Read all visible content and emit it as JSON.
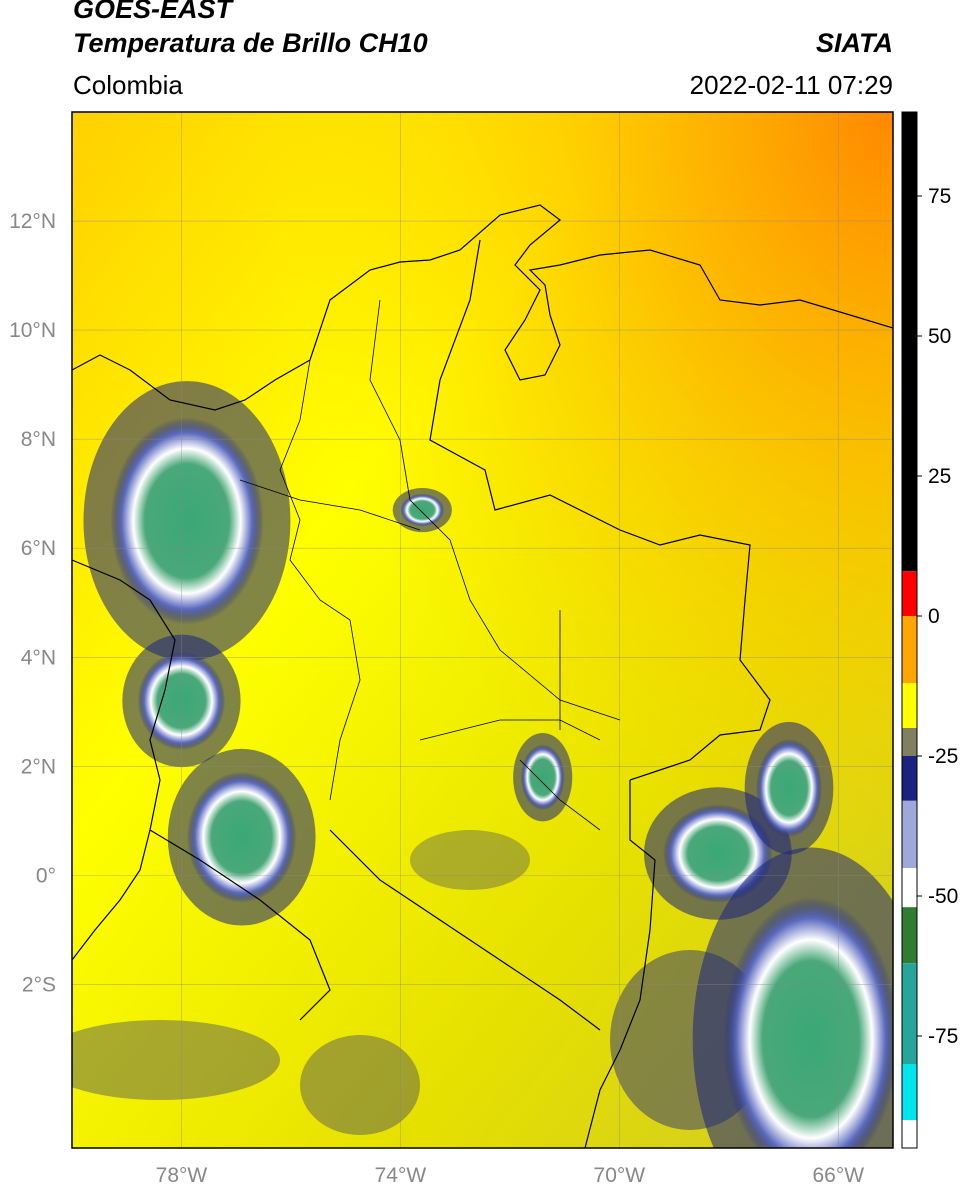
{
  "header": {
    "satellite": "GOES-EAST",
    "product": "Temperatura de Brillo CH10",
    "organization": "SIATA",
    "region": "Colombia",
    "datetime": "2022-02-11 07:29"
  },
  "map": {
    "lon_range": [
      -80,
      -65
    ],
    "lat_range": [
      -5,
      14
    ],
    "lat_ticks": [
      {
        "value": 12,
        "label": "12°N"
      },
      {
        "value": 10,
        "label": "10°N"
      },
      {
        "value": 8,
        "label": "8°N"
      },
      {
        "value": 6,
        "label": "6°N"
      },
      {
        "value": 4,
        "label": "4°N"
      },
      {
        "value": 2,
        "label": "2°N"
      },
      {
        "value": 0,
        "label": "0°"
      },
      {
        "value": -2,
        "label": "2°S"
      }
    ],
    "lon_ticks": [
      {
        "value": -78,
        "label": "78°W"
      },
      {
        "value": -74,
        "label": "74°W"
      },
      {
        "value": -70,
        "label": "70°W"
      },
      {
        "value": -66,
        "label": "66°W"
      }
    ],
    "gridlines": true,
    "colors": {
      "background_warm": "#ffff00",
      "background_orange": "#ffa500",
      "mid_olive": "#c8c832",
      "cold_blue": "#1a237e",
      "cold_white": "#ffffff",
      "cold_green": "#3aa876"
    },
    "cloud_systems": [
      {
        "lon": -77.9,
        "lat": 6.5,
        "rx": 1.4,
        "ry": 1.9
      },
      {
        "lon": -78.0,
        "lat": 3.2,
        "rx": 0.8,
        "ry": 0.9
      },
      {
        "lon": -76.9,
        "lat": 0.7,
        "rx": 1.0,
        "ry": 1.2
      },
      {
        "lon": -71.4,
        "lat": 1.8,
        "rx": 0.4,
        "ry": 0.6
      },
      {
        "lon": -68.2,
        "lat": 0.4,
        "rx": 1.0,
        "ry": 0.9
      },
      {
        "lon": -66.9,
        "lat": 1.6,
        "rx": 0.6,
        "ry": 0.9
      },
      {
        "lon": -66.5,
        "lat": -3.0,
        "rx": 1.6,
        "ry": 2.6
      },
      {
        "lon": -73.6,
        "lat": 6.7,
        "rx": 0.4,
        "ry": 0.3
      }
    ]
  },
  "colorbar": {
    "min": -95,
    "max": 90,
    "ticks": [
      {
        "value": 75,
        "label": "75"
      },
      {
        "value": 50,
        "label": "50"
      },
      {
        "value": 25,
        "label": "25"
      },
      {
        "value": 0,
        "label": "0"
      },
      {
        "value": -25,
        "label": "-25"
      },
      {
        "value": -50,
        "label": "-50"
      },
      {
        "value": -75,
        "label": "-75"
      }
    ],
    "segments": [
      {
        "from": 8,
        "to": 90,
        "color": "#000000"
      },
      {
        "from": 0,
        "to": 8,
        "color": "#ff0000"
      },
      {
        "from": -12,
        "to": 0,
        "color": "#ffa500"
      },
      {
        "from": -20,
        "to": -12,
        "color": "#ffff00"
      },
      {
        "from": -25,
        "to": -20,
        "color": "#808060"
      },
      {
        "from": -33,
        "to": -25,
        "color": "#1a237e"
      },
      {
        "from": -45,
        "to": -33,
        "color": "#9fa8da"
      },
      {
        "from": -52,
        "to": -45,
        "color": "#ffffff"
      },
      {
        "from": -62,
        "to": -52,
        "color": "#2e7d32"
      },
      {
        "from": -80,
        "to": -62,
        "color": "#26a69a"
      },
      {
        "from": -90,
        "to": -80,
        "color": "#00e5ee"
      },
      {
        "from": -95,
        "to": -90,
        "color": "#ffffff"
      }
    ]
  }
}
